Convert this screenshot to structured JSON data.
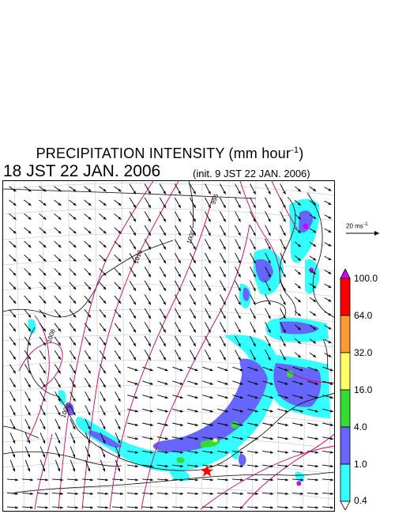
{
  "title": {
    "prefix": "PRECIPITATION INTENSITY (mm hour",
    "superscript": "-1",
    "suffix": ")"
  },
  "datetime": "18 JST 22 JAN. 2006",
  "init": "(init. 9 JST 22 JAN. 2006)",
  "wind_scale": {
    "label": "20 ms",
    "superscript": "-1"
  },
  "isobar_labels": [
    "1008",
    "1008",
    "1016",
    "996",
    "1000"
  ],
  "color_scale": {
    "labels": [
      "100.0",
      "64.0",
      "32.0",
      "16.0",
      "4.0",
      "1.0",
      "0.4"
    ],
    "colors": [
      "#cc00ff",
      "#ff0000",
      "#ff9933",
      "#ffff66",
      "#33dd33",
      "#6666ff",
      "#33ffff",
      "#ffffff"
    ]
  },
  "map_colors": {
    "isobar": "#cc0066",
    "coast": "#000000",
    "grid": "#aaaaaa",
    "arrow": "#000000",
    "marker": "#ff0000"
  },
  "marker": "star"
}
